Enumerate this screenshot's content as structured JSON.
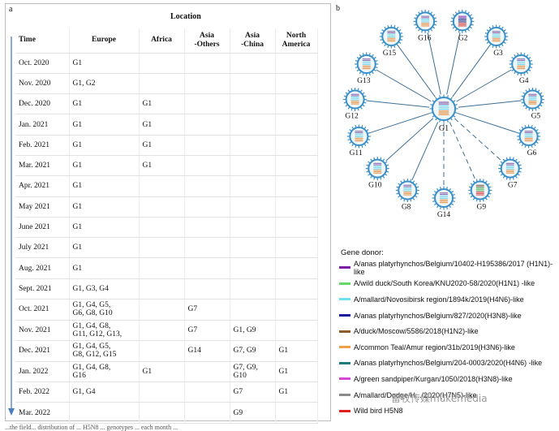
{
  "panel_a": {
    "label": "a",
    "location_header": "Location",
    "columns": [
      "Time",
      "Europe",
      "Africa",
      "Asia\n-Others",
      "Asia\n-China",
      "North\nAmerica"
    ],
    "rows": [
      {
        "time": "Oct. 2020",
        "europe": "G1",
        "africa": "",
        "asia_others": "",
        "asia_china": "",
        "north_america": ""
      },
      {
        "time": "Nov. 2020",
        "europe": "G1, G2",
        "africa": "",
        "asia_others": "",
        "asia_china": "",
        "north_america": ""
      },
      {
        "time": "Dec. 2020",
        "europe": "G1",
        "africa": "G1",
        "asia_others": "",
        "asia_china": "",
        "north_america": ""
      },
      {
        "time": "Jan. 2021",
        "europe": "G1",
        "africa": "G1",
        "asia_others": "",
        "asia_china": "",
        "north_america": ""
      },
      {
        "time": "Feb. 2021",
        "europe": "G1",
        "africa": "G1",
        "asia_others": "",
        "asia_china": "",
        "north_america": ""
      },
      {
        "time": "Mar. 2021",
        "europe": "G1",
        "africa": "G1",
        "asia_others": "",
        "asia_china": "",
        "north_america": ""
      },
      {
        "time": "Apr. 2021",
        "europe": "G1",
        "africa": "",
        "asia_others": "",
        "asia_china": "",
        "north_america": ""
      },
      {
        "time": "May 2021",
        "europe": "G1",
        "africa": "",
        "asia_others": "",
        "asia_china": "",
        "north_america": ""
      },
      {
        "time": "June 2021",
        "europe": "G1",
        "africa": "",
        "asia_others": "",
        "asia_china": "",
        "north_america": ""
      },
      {
        "time": "July 2021",
        "europe": "G1",
        "africa": "",
        "asia_others": "",
        "asia_china": "",
        "north_america": ""
      },
      {
        "time": "Aug. 2021",
        "europe": "G1",
        "africa": "",
        "asia_others": "",
        "asia_china": "",
        "north_america": ""
      },
      {
        "time": "Sept. 2021",
        "europe": "G1, G3, G4",
        "africa": "",
        "asia_others": "",
        "asia_china": "",
        "north_america": ""
      },
      {
        "time": "Oct. 2021",
        "europe": "G1, G4, G5,\nG6, G8, G10",
        "africa": "",
        "asia_others": "G7",
        "asia_china": "",
        "north_america": ""
      },
      {
        "time": "Nov. 2021",
        "europe": "G1, G4, G8,\nG11, G12, G13,",
        "africa": "",
        "asia_others": "G7",
        "asia_china": "G1, G9",
        "north_america": ""
      },
      {
        "time": "Dec. 2021",
        "europe": "G1, G4, G5,\nG8, G12, G15",
        "africa": "",
        "asia_others": "G14",
        "asia_china": "G7, G9",
        "north_america": "G1"
      },
      {
        "time": "Jan. 2022",
        "europe": "G1, G4, G8,\nG16",
        "africa": "G1",
        "asia_others": "",
        "asia_china": "G7, G9,\nG10",
        "north_america": "G1"
      },
      {
        "time": "Feb. 2022",
        "europe": "G1, G4",
        "africa": "",
        "asia_others": "",
        "asia_china": "G7",
        "north_america": "G1"
      },
      {
        "time": "Mar. 2022",
        "europe": "",
        "africa": "",
        "asia_others": "",
        "asia_china": "G9",
        "north_america": ""
      }
    ]
  },
  "panel_b": {
    "label": "b",
    "center_label": "G1",
    "genotypes": [
      {
        "name": "G15",
        "link": "solid",
        "colors": [
          "#7b52a1",
          "#6fd3e6",
          "#e8872f"
        ]
      },
      {
        "name": "G16",
        "link": "solid",
        "colors": [
          "#7b52a1",
          "#6fd3e6",
          "#e8872f"
        ]
      },
      {
        "name": "G2",
        "link": "solid",
        "colors": [
          "#7b1fa2",
          "#1a237e",
          "#d32f2f"
        ]
      },
      {
        "name": "G3",
        "link": "solid",
        "colors": [
          "#7b52a1",
          "#6fd3e6",
          "#e8872f"
        ]
      },
      {
        "name": "G4",
        "link": "solid",
        "colors": [
          "#7b52a1",
          "#6fd3e6",
          "#e8872f"
        ]
      },
      {
        "name": "G5",
        "link": "solid",
        "colors": [
          "#7b52a1",
          "#6fd3e6",
          "#e8872f"
        ]
      },
      {
        "name": "G6",
        "link": "solid",
        "colors": [
          "#7b52a1",
          "#6fd3e6",
          "#e8872f"
        ]
      },
      {
        "name": "G7",
        "link": "dashed",
        "colors": [
          "#7b52a1",
          "#6fd3e6",
          "#e8872f"
        ]
      },
      {
        "name": "G9",
        "link": "dashed",
        "colors": [
          "#6d4c41",
          "#4caf50",
          "#d32f2f"
        ]
      },
      {
        "name": "G14",
        "link": "dashed",
        "colors": [
          "#7b52a1",
          "#6fd3e6",
          "#e8872f"
        ]
      },
      {
        "name": "G8",
        "link": "solid",
        "colors": [
          "#7b52a1",
          "#6fd3e6",
          "#e8872f"
        ]
      },
      {
        "name": "G10",
        "link": "solid",
        "colors": [
          "#7b52a1",
          "#6fd3e6",
          "#e8872f"
        ]
      },
      {
        "name": "G11",
        "link": "solid",
        "colors": [
          "#7b52a1",
          "#6fd3e6",
          "#e8872f"
        ]
      },
      {
        "name": "G12",
        "link": "solid",
        "colors": [
          "#7b52a1",
          "#6fd3e6",
          "#e8872f"
        ]
      },
      {
        "name": "G13",
        "link": "solid",
        "colors": [
          "#7b52a1",
          "#6fd3e6",
          "#e8872f"
        ]
      }
    ],
    "legend_title": "Gene donor:",
    "legend": [
      {
        "text": "A/anas platyrhynchos/Belgium/10402-H195386/2017 (H1N1)-like",
        "color": "#7b1fa2"
      },
      {
        "text": "A/wild duck/South Korea/KNU2020-58/2020(H1N1) -like",
        "color": "#66d86a"
      },
      {
        "text": "A/mallard/Novosibirsk region/1894k/2019(H4N6)-like",
        "color": "#6fe0ef"
      },
      {
        "text": "A/anas platyrhynchos/Belgium/827/2020(H3N8)-like",
        "color": "#1a1a9e"
      },
      {
        "text": "A/duck/Moscow/5586/2018(H1N2)-like",
        "color": "#8d5a2b"
      },
      {
        "text": "A/common Teal/Amur region/31b/2019(H3N6)-like",
        "color": "#f0a04b"
      },
      {
        "text": "A/anas platyrhynchos/Belgium/204-0003/2020(H4N6) -like",
        "color": "#1f7a7a"
      },
      {
        "text": "A/green sandpiper/Kurgan/1050/2018(H3N8)-like",
        "color": "#d44ad6"
      },
      {
        "text": "A/mallard/Dodge/H.../2020(H7N5)-like",
        "color": "#8a8a8a"
      },
      {
        "text": "Wild bird H5N8",
        "color": "#e02020"
      }
    ]
  },
  "watermark": "畜牧传媒mukemedia",
  "footer": "...the field... distribution of ... H5N8 ... genotypes ... each month ..."
}
